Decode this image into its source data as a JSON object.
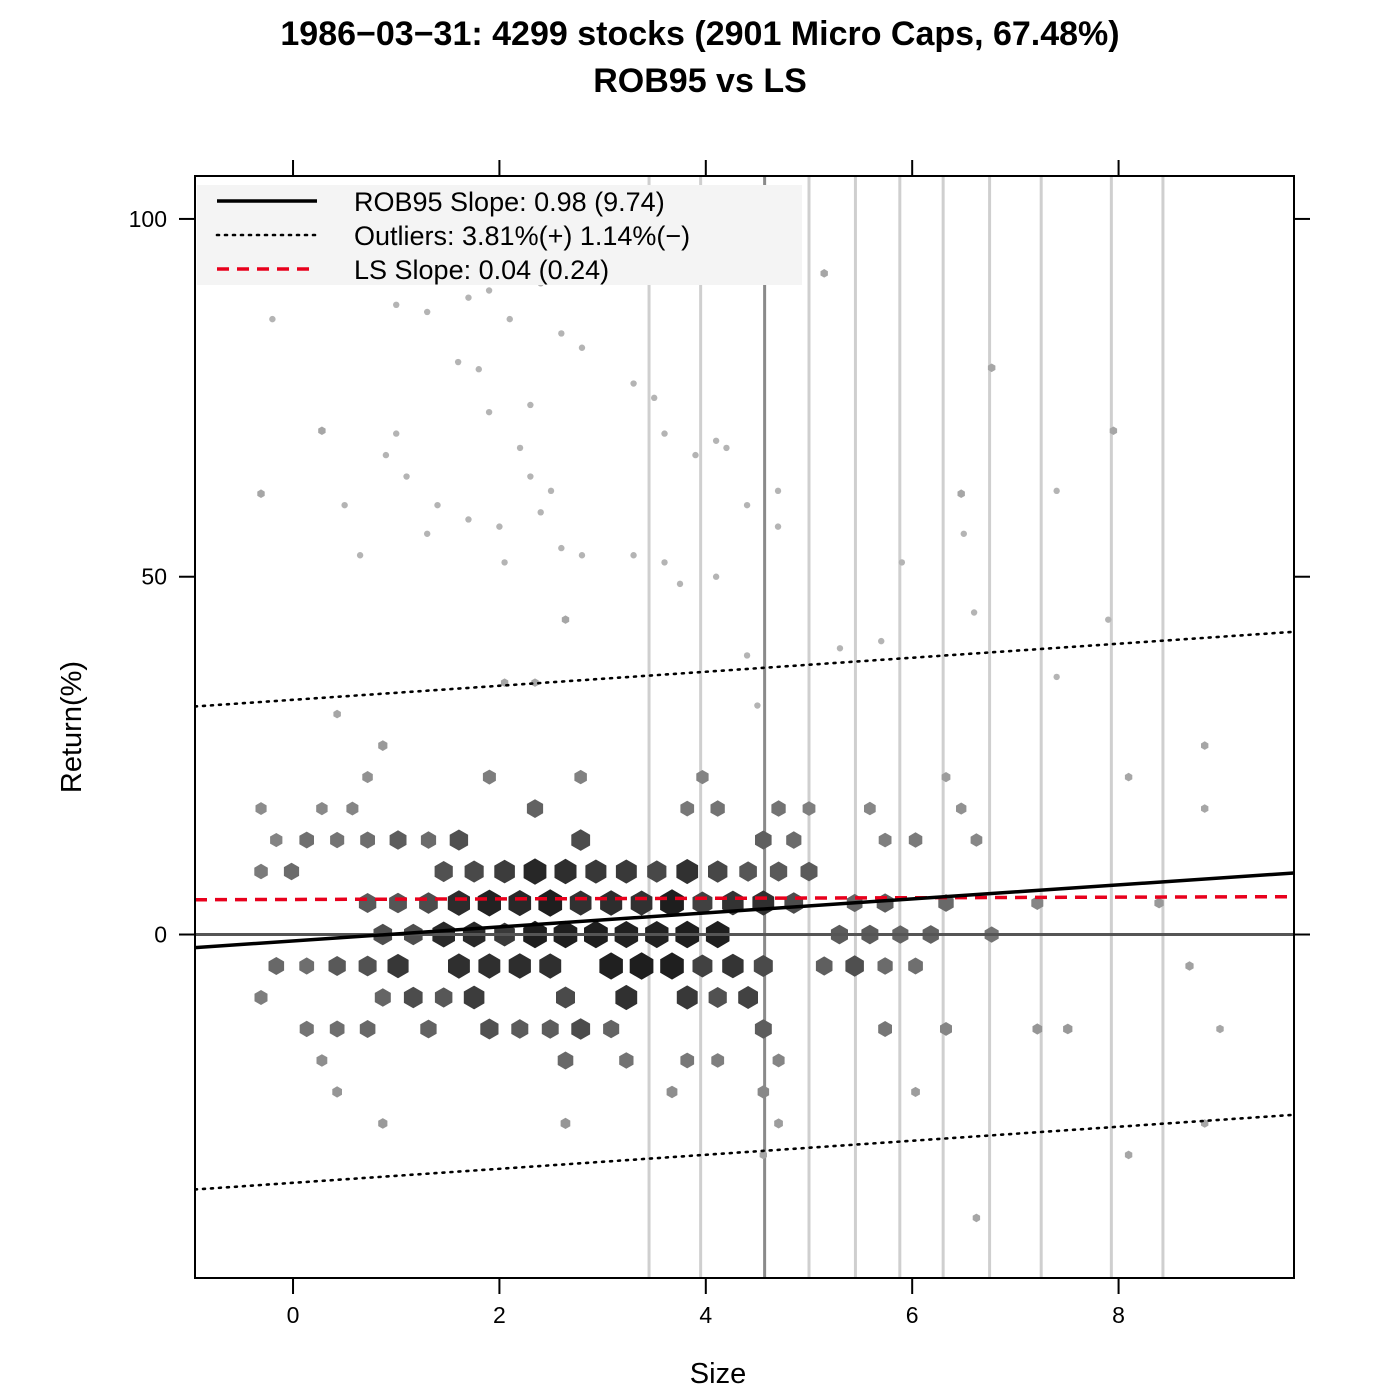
{
  "chart_data": {
    "type": "scatter",
    "title": "1986−03−31: 4299 stocks (2901 Micro Caps, 67.48%)",
    "subtitle": "ROB95 vs LS",
    "xlabel": "Size",
    "ylabel": "Return(%)",
    "xlim": [
      -0.95,
      9.7
    ],
    "ylim": [
      -48,
      106
    ],
    "x_ticks": [
      0,
      2,
      4,
      6,
      8
    ],
    "x_tick_labels": [
      "0",
      "2",
      "4",
      "6",
      "8"
    ],
    "y_ticks": [
      0,
      50,
      100
    ],
    "y_tick_labels": [
      "0",
      "50",
      "100"
    ],
    "grid": false,
    "legend_position": "top-left",
    "legend": [
      {
        "label": "ROB95 Slope: 0.98 (9.74)",
        "style": "solid",
        "color": "#000000"
      },
      {
        "label": "Outliers: 3.81%(+)  1.14%(−)",
        "style": "dotted",
        "color": "#000000"
      },
      {
        "label": "LS Slope: 0.04 (0.24)",
        "style": "dashed",
        "color": "#e8001c"
      }
    ],
    "lines": {
      "rob95": {
        "slope": 0.98,
        "intercept": -0.9
      },
      "ls": {
        "slope": 0.04,
        "intercept": 4.9
      },
      "outlier_upper": {
        "slope": 0.98,
        "intercept": 32.8
      },
      "outlier_lower": {
        "slope": 0.98,
        "intercept": -34.7
      },
      "zero_line": 0
    },
    "size_breakpoints": [
      3.45,
      3.95,
      4.57,
      5.0,
      5.45,
      5.88,
      6.3,
      6.75,
      7.25,
      7.93,
      8.43
    ],
    "size_breakpoint_median": 4.57,
    "hexbin": {
      "x_step": 0.295,
      "y_step": 4.4,
      "center_x": 3.25,
      "center_y": 0.5,
      "spread_x": 2.1,
      "spread_y": 10.5,
      "max_count": 95,
      "seed": 19860331
    },
    "outlier_points": [
      [
        -0.2,
        86
      ],
      [
        1.0,
        88
      ],
      [
        1.3,
        87
      ],
      [
        1.7,
        89
      ],
      [
        1.9,
        90
      ],
      [
        2.1,
        86
      ],
      [
        2.4,
        91
      ],
      [
        2.6,
        84
      ],
      [
        2.8,
        82
      ],
      [
        1.6,
        80
      ],
      [
        1.8,
        79
      ],
      [
        3.3,
        77
      ],
      [
        3.5,
        75
      ],
      [
        3.6,
        70
      ],
      [
        3.9,
        67
      ],
      [
        4.1,
        69
      ],
      [
        4.2,
        68
      ],
      [
        1.0,
        70
      ],
      [
        0.9,
        67
      ],
      [
        1.1,
        64
      ],
      [
        1.9,
        73
      ],
      [
        2.3,
        74
      ],
      [
        2.2,
        68
      ],
      [
        2.3,
        64
      ],
      [
        0.5,
        60
      ],
      [
        0.65,
        53
      ],
      [
        1.3,
        56
      ],
      [
        1.4,
        60
      ],
      [
        1.7,
        58
      ],
      [
        2.0,
        57
      ],
      [
        2.5,
        62
      ],
      [
        2.4,
        59
      ],
      [
        2.05,
        52
      ],
      [
        2.6,
        54
      ],
      [
        2.8,
        53
      ],
      [
        3.3,
        53
      ],
      [
        3.6,
        52
      ],
      [
        3.75,
        49
      ],
      [
        4.1,
        50
      ],
      [
        4.4,
        60
      ],
      [
        4.7,
        62
      ],
      [
        4.7,
        57
      ],
      [
        6.5,
        56
      ],
      [
        5.9,
        52
      ],
      [
        7.4,
        62
      ],
      [
        6.6,
        45
      ],
      [
        5.7,
        41
      ],
      [
        5.3,
        40
      ],
      [
        7.4,
        36
      ],
      [
        7.9,
        44
      ],
      [
        4.4,
        39
      ],
      [
        4.5,
        32
      ]
    ]
  }
}
